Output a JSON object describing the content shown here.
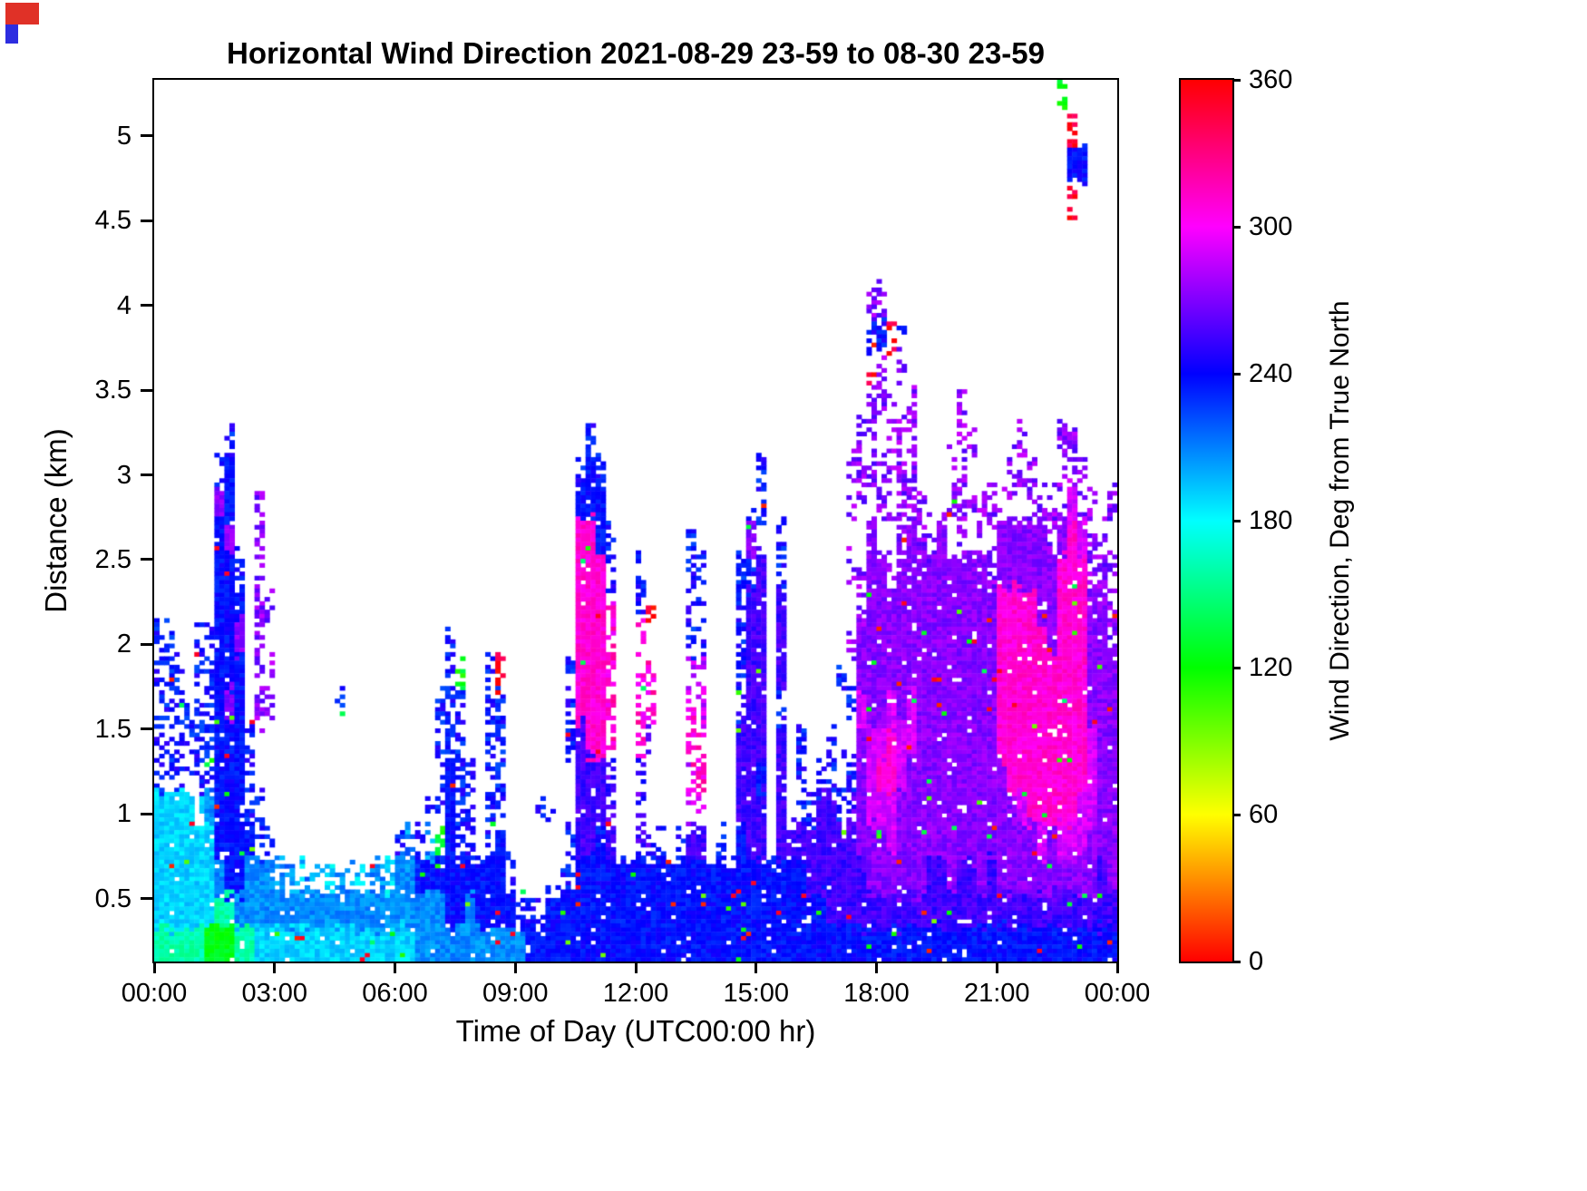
{
  "chart_data": {
    "type": "heatmap",
    "title": "Horizontal Wind Direction 2021-08-29 23-59 to 08-30 23-59",
    "xlabel": "Time of Day (UTC00:00 hr)",
    "ylabel": "Distance (km)",
    "x_range_hours": [
      0,
      24
    ],
    "y_range_km": [
      0.13,
      5.33
    ],
    "x_ticks": [
      {
        "hours": 0,
        "label": "00:00"
      },
      {
        "hours": 3,
        "label": "03:00"
      },
      {
        "hours": 6,
        "label": "06:00"
      },
      {
        "hours": 9,
        "label": "09:00"
      },
      {
        "hours": 12,
        "label": "12:00"
      },
      {
        "hours": 15,
        "label": "15:00"
      },
      {
        "hours": 18,
        "label": "18:00"
      },
      {
        "hours": 21,
        "label": "21:00"
      },
      {
        "hours": 24,
        "label": "00:00"
      }
    ],
    "y_ticks": [
      {
        "km": 0.5,
        "label": "0.5"
      },
      {
        "km": 1,
        "label": "1"
      },
      {
        "km": 1.5,
        "label": "1.5"
      },
      {
        "km": 2,
        "label": "2"
      },
      {
        "km": 2.5,
        "label": "2.5"
      },
      {
        "km": 3,
        "label": "3"
      },
      {
        "km": 3.5,
        "label": "3.5"
      },
      {
        "km": 4,
        "label": "4"
      },
      {
        "km": 4.5,
        "label": "4.5"
      },
      {
        "km": 5,
        "label": "5"
      }
    ],
    "colorbar": {
      "label": "Wind Direction, Deg from True North",
      "range": [
        0,
        360
      ],
      "ticks": [
        {
          "value": 0,
          "label": "0"
        },
        {
          "value": 60,
          "label": "60"
        },
        {
          "value": 120,
          "label": "120"
        },
        {
          "value": 180,
          "label": "180"
        },
        {
          "value": 240,
          "label": "240"
        },
        {
          "value": 300,
          "label": "300"
        },
        {
          "value": 360,
          "label": "360"
        }
      ],
      "colormap": "hsv"
    },
    "grid": {
      "description": "Wind direction heatmap sampled on a coarse grid read from the figure. Each string is one 15-minute time column, characters run bottom-to-top in 0.2 km bins starting at 0.13 km. Letter = direction class (see legend_deg, degrees from true north); uppercase = dense coverage, lowercase = sparse/speckled; '.' = no data (white).",
      "x_bin_hours": 0.25,
      "y_bin_km": 0.2,
      "y_start_km": 0.13,
      "n_rows": 26,
      "value_unit": "degrees from true north",
      "legend_deg": {
        "Y": 60,
        "G": 125,
        "T": 160,
        "C": 190,
        "S": 207,
        "B": 237,
        "I": 255,
        "P": 272,
        "V": 290,
        "M": 310,
        "R": 352
      },
      "coverage": {
        "dense_uppercase": 0.97,
        "sparse_lowercase": 0.42
      },
      "no_data": ".",
      "columns": [
        "TCCCCbbbbb",
        "TCCCCbbbbb",
        "TCCCCbbbb",
        "TCCCCbbb",
        "TCCCcbbbbb",
        "GCCCSbbbbb",
        "GTSBBBBBBBBBBPb",
        "GTBBBBBPBBBBPBBb",
        "TSBBBBBBBPBb",
        "TSSBbbb",
        "CSSbb..ppppppp",
        "CSSb...pp.p",
        "CSs",
        "CSs",
        "CSc",
        "CSs",
        "CSs",
        "CSc",
        "CSs....b",
        "CSs",
        "CSc",
        "CSs",
        "CSs",
        "CSc",
        "CSSb",
        "CSSs",
        "SSBb",
        "SSBsb",
        "SSBgbbbb",
        "SBBBBBbbbb",
        "SBBbbbbbg",
        "SSBbbb",
        "SBB",
        "SBBbbbbbb",
        "SBBBbbbbr",
        "SBb",
        "Sb",
        "Bb",
        "Bb..b",
        "BB..b",
        "BBb",
        "BBbb..bbb",
        "BBBIIIIMMMMMMBb",
        "BBBIIIMMMMMMMBBb",
        "BBBBIIMMMMMMBBb",
        "BBBIiimmmmmbb",
        "BBB",
        "BBB",
        "BBBiiimmmmbb",
        "BBBi..imm.r",
        "BBBb",
        "BBB",
        "BBBb",
        "BBBIvvmmvbibb",
        "BBBIvmmvvbbb",
        "BBB",
        "BBBb",
        "BBB",
        "BBBBIIIbbbbb",
        "BBBIIIIIIIIbPb",
        "BBBIIBIIIIIIbbb",
        "BBB",
        "BBBIIIIbIIIbb",
        "BBBI",
        "BBBIbbb",
        "BBIIb",
        "BBIIIb",
        "BIIIIbb",
        "BIIIbb..b",
        "BIIIib.b.p.p.pp",
        "BIIPPPPVPPpp.ppp",
        "BIPPVVVPPPPPP.ppprbp",
        "BIPPVMVPPPPP.pp.ppbp",
        "BIPVVMMVPPPp.pppp.r",
        "BIPPPVVPPPPPpppp.pb",
        "BIPPPPVVPPPPPpppp",
        "BIPPPPPPPPPPpp",
        "BIIPPPPPPPPPp",
        "BIIPPPPPPPPPP",
        "BIPPPPPPPPPP.pp",
        "BIIPPPPPPPPPppppp",
        "BIIPPPPPPPPP.p.p",
        "BIPPPPPPPPPPpp",
        "BIIPPPPPPPPppp",
        "BIPPPPMMMMMPPp",
        "BIPPPMMMMMMPPpp",
        "BIPPVMMMMMMPP.pp",
        "BIPPMMMMMMMPPpp",
        "BIPVMMMMMMPPPp",
        "BIPPMMMMMPPPpp",
        "BIPVMMMMMMMMPppp.........g",
        "BIPVMMMMMMMMMVpp......rBr.",
        "BIPVVMMMMMMMVpp........B..",
        "BIPPVVVPPPPppp",
        "BIIPPPPPPPPpp",
        "BIPPPPPPPppp.p"
      ]
    }
  },
  "artifacts": {
    "corner_red": "#e03127",
    "corner_blue": "#2d2de0"
  }
}
